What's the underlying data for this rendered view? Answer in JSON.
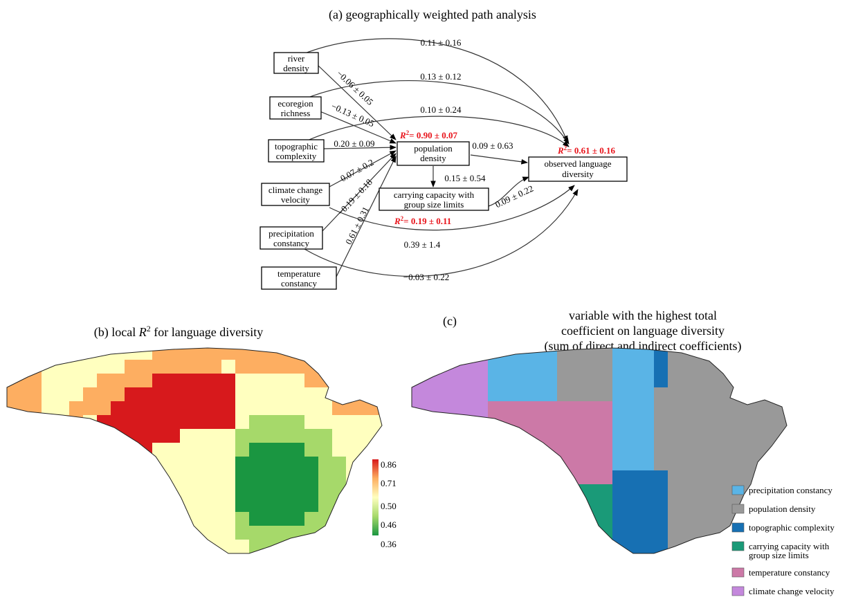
{
  "panel_a": {
    "title": "(a) geographically weighted path analysis",
    "nodes": {
      "river": [
        "river",
        "density"
      ],
      "ecoregion": [
        "ecoregion",
        "richness"
      ],
      "topo": [
        "topographic",
        "complexity"
      ],
      "climate": [
        "climate change",
        "velocity"
      ],
      "precip": [
        "precipitation",
        "constancy"
      ],
      "temp": [
        "temperature",
        "constancy"
      ],
      "pop": [
        "population",
        "density"
      ],
      "carry": [
        "carrying capacity with",
        "group size limits"
      ],
      "lang": [
        "observed language",
        "diversity"
      ]
    },
    "edges": {
      "river_lang": "0.11 ± 0.16",
      "eco_lang": "0.13 ± 0.12",
      "topo_lang": "0.10 ± 0.24",
      "river_pop": "−0.06 ± 0.05",
      "eco_pop": "−0.13 ± 0.05",
      "topo_pop": "0.20 ± 0.09",
      "climate_pop": "0.07 ± 0.2",
      "precip_pop": "−0.19 ± 0.18",
      "temp_pop": "0.61 ± 0.31",
      "pop_lang": "0.09 ± 0.63",
      "pop_carry": "0.15 ± 0.54",
      "carry_lang": "0.09 ± 0.22",
      "climate_lang": "0.39 ± 1.4",
      "temp_lang": "−0.03 ± 0.22"
    },
    "r2": {
      "pop": "= 0.90 ± 0.07",
      "carry": "= 0.19 ± 0.11",
      "lang": "= 0.61 ± 0.16"
    }
  },
  "panel_b": {
    "title_prefix": "(b) local",
    "title_suffix": "for language diversity",
    "colorbar": {
      "ticks": [
        "0.86",
        "0.71",
        "0.50",
        "0.46",
        "0.36"
      ],
      "colors": [
        "#d7191c",
        "#fdae61",
        "#ffffbf",
        "#a6d96a",
        "#1a9641"
      ]
    }
  },
  "panel_c": {
    "label": "(c)",
    "title": [
      "variable with the highest total",
      "coefficient on language diversity",
      "(sum of direct and indirect coefficients)"
    ],
    "legend": [
      {
        "label": [
          "precipitation constancy"
        ],
        "color": "#5ab4e6"
      },
      {
        "label": [
          "population density"
        ],
        "color": "#999999"
      },
      {
        "label": [
          "topographic complexity"
        ],
        "color": "#1770b3"
      },
      {
        "label": [
          "carrying capacity with",
          "group size limits"
        ],
        "color": "#1a9a78"
      },
      {
        "label": [
          "temperature constancy"
        ],
        "color": "#cc79a7"
      },
      {
        "label": [
          "climate change velocity"
        ],
        "color": "#c488dc"
      }
    ]
  }
}
